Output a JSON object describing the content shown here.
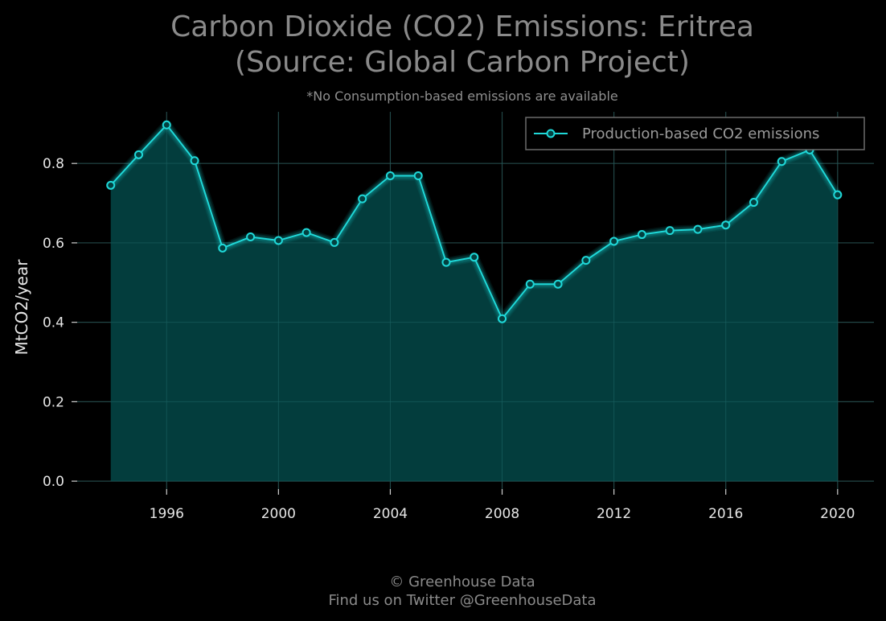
{
  "header": {
    "title_line1": "Carbon Dioxide (CO2) Emissions: Eritrea",
    "title_line2": "(Source: Global Carbon Project)",
    "subtitle": "*No Consumption-based emissions are available"
  },
  "footer": {
    "line1": "© Greenhouse Data",
    "line2": "Find us on Twitter @GreenhouseData"
  },
  "colors": {
    "background": "#000000",
    "line": "#1fd8d8",
    "fill": "#034040",
    "grid": "#2a2a2a"
  },
  "chart_data": {
    "type": "area",
    "title": "Carbon Dioxide (CO2) Emissions: Eritrea (Source: Global Carbon Project)",
    "subtitle": "*No Consumption-based emissions are available",
    "xlabel": "",
    "ylabel": "MtCO2/year",
    "xlim": [
      1992.8,
      2021.3
    ],
    "ylim": [
      -0.02,
      0.93
    ],
    "xticks": [
      1996,
      2000,
      2004,
      2008,
      2012,
      2016,
      2020
    ],
    "yticks": [
      0.0,
      0.2,
      0.4,
      0.6,
      0.8
    ],
    "ytick_labels": [
      "0.0",
      "0.2",
      "0.4",
      "0.6",
      "0.8"
    ],
    "grid": true,
    "legend_position": "top-right",
    "x": [
      1994,
      1995,
      1996,
      1997,
      1998,
      1999,
      2000,
      2001,
      2002,
      2003,
      2004,
      2005,
      2006,
      2007,
      2008,
      2009,
      2010,
      2011,
      2012,
      2013,
      2014,
      2015,
      2016,
      2017,
      2018,
      2019,
      2020
    ],
    "series": [
      {
        "name": "Production-based CO2 emissions",
        "values": [
          0.745,
          0.822,
          0.897,
          0.807,
          0.587,
          0.615,
          0.606,
          0.626,
          0.601,
          0.711,
          0.769,
          0.769,
          0.551,
          0.564,
          0.409,
          0.496,
          0.496,
          0.556,
          0.604,
          0.621,
          0.631,
          0.634,
          0.645,
          0.702,
          0.805,
          0.834,
          0.721
        ]
      }
    ]
  }
}
